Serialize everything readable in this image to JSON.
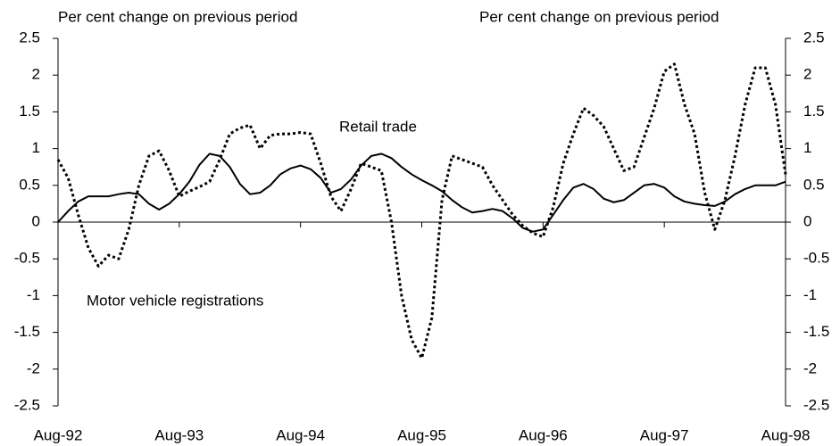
{
  "chart_data": {
    "type": "line",
    "y_label": "Per cent change on previous period",
    "y2_label": "Per cent change on previous period",
    "categories": [
      "Aug-92",
      null,
      null,
      null,
      null,
      null,
      null,
      null,
      null,
      null,
      null,
      null,
      "Aug-93",
      null,
      null,
      null,
      null,
      null,
      null,
      null,
      null,
      null,
      null,
      null,
      "Aug-94",
      null,
      null,
      null,
      null,
      null,
      null,
      null,
      null,
      null,
      null,
      null,
      "Aug-95",
      null,
      null,
      null,
      null,
      null,
      null,
      null,
      null,
      null,
      null,
      null,
      "Aug-96",
      null,
      null,
      null,
      null,
      null,
      null,
      null,
      null,
      null,
      null,
      null,
      "Aug-97",
      null,
      null,
      null,
      null,
      null,
      null,
      null,
      null,
      null,
      null,
      null,
      "Aug-98"
    ],
    "series": [
      {
        "name": "Retail trade",
        "color": "#000000",
        "style": "solid",
        "values": [
          0.0,
          0.15,
          0.28,
          0.35,
          0.35,
          0.35,
          0.38,
          0.4,
          0.38,
          0.25,
          0.17,
          0.25,
          0.38,
          0.55,
          0.78,
          0.93,
          0.9,
          0.75,
          0.52,
          0.38,
          0.4,
          0.5,
          0.65,
          0.73,
          0.77,
          0.72,
          0.6,
          0.4,
          0.45,
          0.58,
          0.77,
          0.9,
          0.93,
          0.87,
          0.75,
          0.65,
          0.57,
          0.5,
          0.42,
          0.3,
          0.2,
          0.13,
          0.15,
          0.18,
          0.15,
          0.05,
          -0.08,
          -0.13,
          -0.1,
          0.1,
          0.3,
          0.47,
          0.52,
          0.45,
          0.32,
          0.27,
          0.3,
          0.4,
          0.5,
          0.52,
          0.47,
          0.35,
          0.28,
          0.25,
          0.23,
          0.22,
          0.28,
          0.38,
          0.45,
          0.5,
          0.5,
          0.5,
          0.55
        ]
      },
      {
        "name": "Motor vehicle registrations",
        "color": "#000000",
        "style": "dotted",
        "values": [
          0.85,
          0.6,
          0.1,
          -0.35,
          -0.6,
          -0.45,
          -0.5,
          -0.1,
          0.5,
          0.9,
          0.97,
          0.7,
          0.35,
          0.42,
          0.48,
          0.55,
          0.85,
          1.2,
          1.28,
          1.32,
          1.0,
          1.18,
          1.2,
          1.2,
          1.22,
          1.2,
          0.8,
          0.35,
          0.15,
          0.45,
          0.8,
          0.75,
          0.7,
          0.0,
          -1.0,
          -1.6,
          -1.85,
          -1.3,
          0.3,
          0.9,
          0.85,
          0.8,
          0.75,
          0.5,
          0.3,
          0.1,
          -0.05,
          -0.15,
          -0.2,
          0.2,
          0.8,
          1.2,
          1.55,
          1.45,
          1.3,
          1.0,
          0.7,
          0.75,
          1.15,
          1.55,
          2.05,
          2.15,
          1.6,
          1.2,
          0.4,
          -0.1,
          0.3,
          0.9,
          1.6,
          2.1,
          2.1,
          1.6,
          0.65
        ]
      }
    ],
    "ylim": [
      -2.5,
      2.5
    ],
    "yticks": [
      2.5,
      2,
      1.5,
      1,
      0.5,
      0,
      -0.5,
      -1,
      -1.5,
      -2,
      -2.5
    ],
    "y2lim": [
      -2.5,
      2.5
    ],
    "y2ticks": [
      2.5,
      2,
      1.5,
      1,
      0.5,
      0,
      -0.5,
      -1,
      -1.5,
      -2,
      -2.5
    ],
    "grid": false
  }
}
